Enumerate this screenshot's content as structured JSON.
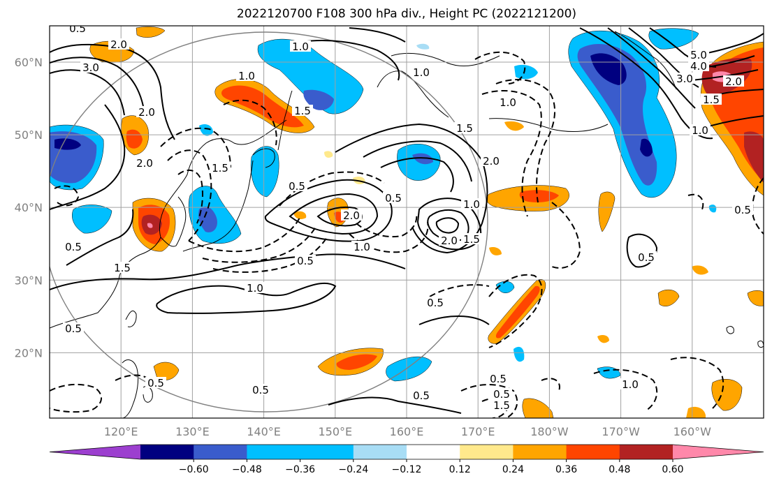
{
  "title": "2022120700 F108 300 hPa div., Height PC (2022121200)",
  "map": {
    "lon_range_east": [
      110,
      210
    ],
    "lat_range": [
      11,
      65
    ],
    "projection": "equirectangular",
    "grid": true,
    "lat_ticks": [
      {
        "value": 20,
        "label": "20°N"
      },
      {
        "value": 30,
        "label": "30°N"
      },
      {
        "value": 40,
        "label": "40°N"
      },
      {
        "value": 50,
        "label": "50°N"
      },
      {
        "value": 60,
        "label": "60°N"
      }
    ],
    "lon_ticks": [
      {
        "value": 120,
        "label": "120°E"
      },
      {
        "value": 130,
        "label": "130°E"
      },
      {
        "value": 140,
        "label": "140°E"
      },
      {
        "value": 150,
        "label": "150°E"
      },
      {
        "value": 160,
        "label": "160°E"
      },
      {
        "value": 170,
        "label": "170°E"
      },
      {
        "value": 180,
        "label": "180°W"
      },
      {
        "value": 190,
        "label": "170°W"
      },
      {
        "value": 200,
        "label": "160°W"
      }
    ]
  },
  "colorbar": {
    "ticks": [
      "−0.60",
      "−0.48",
      "−0.36",
      "−0.24",
      "−0.12",
      "0.12",
      "0.24",
      "0.36",
      "0.48",
      "0.60"
    ],
    "colors": {
      "below_min": "#9c3fcf",
      "bins": [
        "#000080",
        "#3a5ccc",
        "#00bfff",
        "#00bfff",
        "#a8ddf5",
        "#ffffff",
        "#ffe98c",
        "#ffa500",
        "#ff4500",
        "#b22222"
      ],
      "above_max": "#ff88aa"
    }
  },
  "contour_labels": [
    "0.5",
    "1.0",
    "1.5",
    "2.0",
    "3.0",
    "4.0",
    "5.0"
  ]
}
